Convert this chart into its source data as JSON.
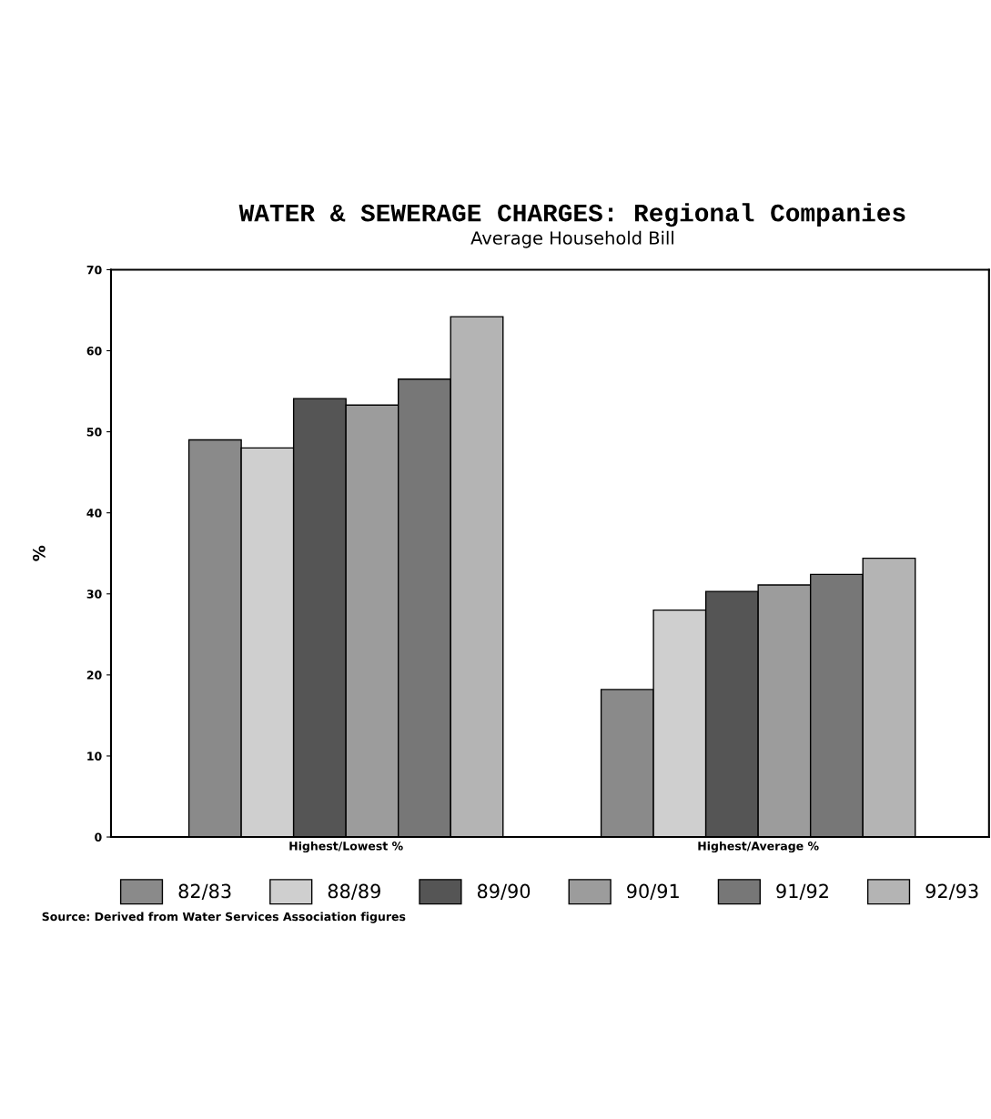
{
  "chart_data": {
    "type": "bar",
    "title": "WATER & SEWERAGE CHARGES: Regional Companies",
    "subtitle": "Average Household Bill",
    "ylabel": "%",
    "categories": [
      "Highest/Lowest %",
      "Highest/Average %"
    ],
    "series": [
      {
        "name": "82/83",
        "color": "#8a8a8a",
        "values": [
          49,
          18.2
        ]
      },
      {
        "name": "88/89",
        "color": "#cfcfcf",
        "values": [
          48,
          28
        ]
      },
      {
        "name": "89/90",
        "color": "#555555",
        "values": [
          54.1,
          30.3
        ]
      },
      {
        "name": "90/91",
        "color": "#9c9c9c",
        "values": [
          53.3,
          31.1
        ]
      },
      {
        "name": "91/92",
        "color": "#777777",
        "values": [
          56.5,
          32.4
        ]
      },
      {
        "name": "92/93",
        "color": "#b4b4b4",
        "values": [
          64.2,
          34.4
        ]
      }
    ],
    "ylim": [
      0,
      70
    ],
    "yticks": [
      0,
      10,
      20,
      30,
      40,
      50,
      60,
      70
    ],
    "grid": false,
    "legend": "bottom",
    "annotations": [
      "Source: Derived from Water Services Association figures"
    ]
  }
}
